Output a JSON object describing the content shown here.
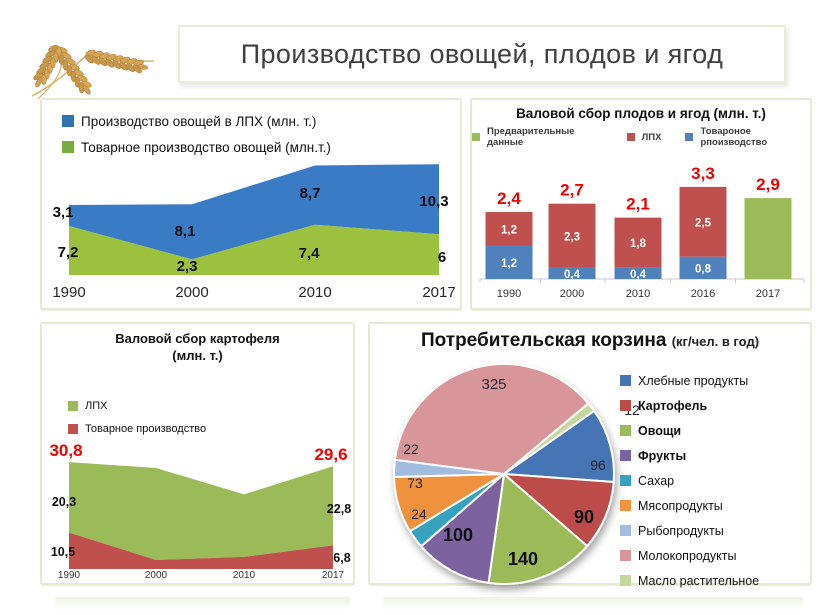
{
  "header": {
    "title": "Производство овощей, плодов и ягод",
    "logo": "wheat-photo"
  },
  "accent_red": "#f20000",
  "panel_border_color": "#e3ecce",
  "chart_data": [
    {
      "id": "vegetables_area",
      "type": "area",
      "stacked": true,
      "categories": [
        "1990",
        "2000",
        "2010",
        "2017"
      ],
      "legend": [
        {
          "label": "Производство овощей в ЛПХ (млн. т.)",
          "color": "#2e74b5"
        },
        {
          "label": "Товарное производство овощей (млн.т.)",
          "color": "#76ad3b"
        }
      ],
      "series": [
        {
          "name": "Товарное производство овощей (млн.т.)",
          "color": "#9cc13e",
          "values": [
            7.2,
            2.3,
            7.4,
            6
          ],
          "labels": [
            "7,2",
            "2,3",
            "7,4",
            "6"
          ]
        },
        {
          "name": "Производство овощей в ЛПХ (млн. т.)",
          "color": "#3a7bc5",
          "values": [
            3.1,
            8.1,
            8.7,
            10.3
          ],
          "labels": [
            "3,1",
            "8,1",
            "8,7",
            "10,3"
          ]
        }
      ],
      "ylim": [
        0,
        16.5
      ],
      "grid": false,
      "legend_position": "top-left"
    },
    {
      "id": "fruits_berries_bars",
      "type": "bar",
      "stacked": true,
      "title": "Валовой сбор плодов и ягод (млн. т.)",
      "categories": [
        "1990",
        "2000",
        "2010",
        "2016",
        "2017"
      ],
      "legend": [
        {
          "label": "Предварительные данные",
          "color": "#9bbb59"
        },
        {
          "label": "ЛПХ",
          "color": "#c0504d"
        },
        {
          "label": "Товароное рпоизводство",
          "color": "#4f81bd"
        }
      ],
      "series": [
        {
          "name": "Товароное рпоизводство",
          "color": "#4f81bd",
          "values": [
            1.2,
            0.4,
            0.4,
            0.8,
            null
          ],
          "labels": [
            "1,2",
            "0,4",
            "0,4",
            "0,8",
            ""
          ]
        },
        {
          "name": "ЛПХ",
          "color": "#c0504d",
          "values": [
            1.2,
            2.3,
            1.8,
            2.5,
            null
          ],
          "labels": [
            "1,2",
            "2,3",
            "1,8",
            "2,5",
            ""
          ]
        },
        {
          "name": "Предварительные данные",
          "color": "#9bbb59",
          "values": [
            null,
            null,
            null,
            null,
            2.9
          ],
          "labels": [
            "",
            "",
            "",
            "",
            ""
          ]
        }
      ],
      "totals": {
        "values": [
          2.4,
          2.7,
          2.1,
          3.3,
          2.9
        ],
        "labels": [
          "2,4",
          "2,7",
          "2,1",
          "3,3",
          "2,9"
        ],
        "color": "#f20000"
      },
      "ylim": [
        0,
        3.6
      ],
      "grid": false,
      "legend_position": "top"
    },
    {
      "id": "potato_area",
      "type": "area",
      "stacked": true,
      "title": "Валовой сбор картофеля",
      "subtitle": "(млн. т.)",
      "categories": [
        "1990",
        "2000",
        "2010",
        "2017"
      ],
      "legend": [
        {
          "label": "ЛПХ",
          "color": "#9bbb59"
        },
        {
          "label": "Товарное производство",
          "color": "#c0504d"
        }
      ],
      "series": [
        {
          "name": "Товарное производство",
          "color": "#c0504d",
          "values": [
            10.5,
            2.6,
            3.5,
            6.8
          ],
          "labels": [
            "10,5",
            "",
            "",
            "6,8"
          ]
        },
        {
          "name": "ЛПХ",
          "color": "#9bbb59",
          "values": [
            20.3,
            26.5,
            18,
            22.8
          ],
          "labels": [
            "20,3",
            "",
            "",
            "22,8"
          ]
        }
      ],
      "totals": {
        "values": [
          30.8,
          29.1,
          21.5,
          29.6
        ],
        "labels": [
          "30,8",
          "",
          "",
          "29,6"
        ],
        "color": "#f20000"
      },
      "ylim": [
        0,
        31.5
      ],
      "grid": false,
      "legend_position": "left",
      "note": "middle values estimated from chart geometry"
    },
    {
      "id": "consumer_basket_pie",
      "type": "pie",
      "title": "Потребительская корзина",
      "subtitle": "(кг/чел. в год)",
      "rotation_deg": 55,
      "slices": [
        {
          "label": "Хлебные продукты",
          "value": 96,
          "display": "96",
          "color": "#4474b4",
          "bold": false
        },
        {
          "label": "Картофель",
          "value": 90,
          "display": "90",
          "color": "#bd4b48",
          "bold": true
        },
        {
          "label": "Овощи",
          "value": 140,
          "display": "140",
          "color": "#9cba59",
          "bold": true
        },
        {
          "label": "Фрукты",
          "value": 100,
          "display": "100",
          "color": "#7d62a0",
          "bold": true
        },
        {
          "label": "Сахар",
          "value": 24,
          "display": "24",
          "color": "#35a3bd",
          "bold": false
        },
        {
          "label": "Мясопродукты",
          "value": 73,
          "display": "73",
          "color": "#f0923e",
          "bold": false
        },
        {
          "label": "Рыбопродукты",
          "value": 22,
          "display": "22",
          "color": "#a2bce0",
          "bold": false
        },
        {
          "label": "Молокопродукты",
          "value": 325,
          "display": "325",
          "color": "#d8969b",
          "bold": false
        },
        {
          "label": "Масло растительное",
          "value": 12,
          "display": "12",
          "color": "#c6d79e",
          "bold": false
        }
      ],
      "legend_position": "right"
    }
  ]
}
